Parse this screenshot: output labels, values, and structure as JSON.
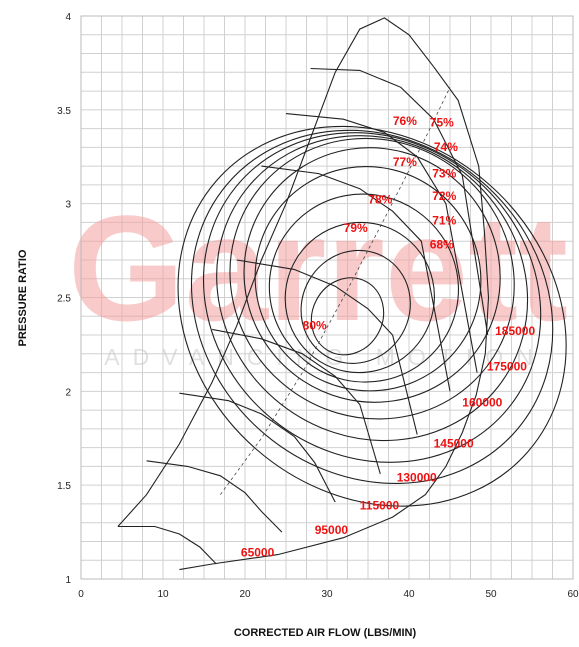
{
  "chart_data": {
    "type": "line",
    "chart_kind": "compressor map",
    "xlabel": "CORRECTED AIR FLOW (LBS/MIN)",
    "ylabel": "PRESSURE RATIO",
    "xlim": [
      0,
      60
    ],
    "ylim": [
      1,
      4
    ],
    "xticks": [
      "0",
      "10",
      "20",
      "30",
      "40",
      "50",
      "60"
    ],
    "yticks": [
      "1",
      "1.5",
      "2",
      "2.5",
      "3",
      "3.5",
      "4"
    ],
    "grid": true,
    "watermark": {
      "main": "Garrett",
      "sub": "ADVANCING MOTION",
      "color": "#f4a0a0"
    },
    "label_color": "#ee1111",
    "line_color": "#222222",
    "surge_line": [
      [
        4.5,
        1.28
      ],
      [
        8,
        1.45
      ],
      [
        12,
        1.72
      ],
      [
        16,
        2.05
      ],
      [
        19,
        2.35
      ],
      [
        22,
        2.7
      ],
      [
        25,
        3.0
      ],
      [
        28,
        3.35
      ],
      [
        31,
        3.7
      ],
      [
        34,
        3.93
      ],
      [
        37,
        3.99
      ],
      [
        40,
        3.9
      ],
      [
        43,
        3.73
      ]
    ],
    "choke_line": [
      [
        43,
        3.73
      ],
      [
        46,
        3.55
      ],
      [
        48.5,
        3.2
      ],
      [
        49.2,
        2.85
      ],
      [
        49.7,
        2.5
      ],
      [
        49.3,
        2.2
      ],
      [
        48.2,
        1.98
      ],
      [
        46.5,
        1.78
      ],
      [
        44.5,
        1.6
      ],
      [
        42,
        1.45
      ],
      [
        38,
        1.33
      ],
      [
        32,
        1.22
      ],
      [
        24,
        1.13
      ],
      [
        16,
        1.08
      ],
      [
        12,
        1.05
      ]
    ],
    "speed_lines": [
      {
        "label": "65000",
        "points": [
          [
            4.5,
            1.28
          ],
          [
            9,
            1.28
          ],
          [
            12,
            1.24
          ],
          [
            14.5,
            1.17
          ],
          [
            16.5,
            1.08
          ]
        ]
      },
      {
        "label": "95000",
        "points": [
          [
            8,
            1.63
          ],
          [
            13,
            1.6
          ],
          [
            17,
            1.55
          ],
          [
            20,
            1.46
          ],
          [
            22,
            1.36
          ],
          [
            24.5,
            1.25
          ]
        ]
      },
      {
        "label": "115000",
        "points": [
          [
            12,
            1.99
          ],
          [
            18,
            1.95
          ],
          [
            22,
            1.88
          ],
          [
            26,
            1.76
          ],
          [
            28.5,
            1.62
          ],
          [
            31,
            1.41
          ]
        ]
      },
      {
        "label": "130000",
        "points": [
          [
            16,
            2.33
          ],
          [
            22,
            2.28
          ],
          [
            27,
            2.2
          ],
          [
            31,
            2.08
          ],
          [
            34,
            1.93
          ],
          [
            36.5,
            1.56
          ]
        ]
      },
      {
        "label": "145000",
        "points": [
          [
            19,
            2.7
          ],
          [
            26,
            2.65
          ],
          [
            31,
            2.56
          ],
          [
            35,
            2.44
          ],
          [
            38,
            2.3
          ],
          [
            41,
            1.77
          ]
        ]
      },
      {
        "label": "160000",
        "points": [
          [
            22,
            3.2
          ],
          [
            29,
            3.16
          ],
          [
            34,
            3.08
          ],
          [
            38,
            2.96
          ],
          [
            41.5,
            2.8
          ],
          [
            45,
            2.0
          ]
        ]
      },
      {
        "label": "175000",
        "points": [
          [
            25,
            3.48
          ],
          [
            32,
            3.45
          ],
          [
            37,
            3.38
          ],
          [
            41,
            3.25
          ],
          [
            44.5,
            3.0
          ],
          [
            48.3,
            2.1
          ]
        ]
      },
      {
        "label": "185000",
        "points": [
          [
            28,
            3.72
          ],
          [
            34,
            3.71
          ],
          [
            39,
            3.62
          ],
          [
            43,
            3.45
          ],
          [
            46.5,
            3.15
          ],
          [
            49.6,
            2.3
          ]
        ]
      }
    ],
    "efficiency_islands": [
      {
        "label": "80%",
        "cx": 32.5,
        "cy": 2.4,
        "rx": 4.8,
        "ry": 0.34,
        "rot": 62
      },
      {
        "label": "79%",
        "cx": 33.5,
        "cy": 2.45,
        "rx": 7.0,
        "ry": 0.52,
        "rot": 60
      },
      {
        "label": "78%",
        "cx": 34.0,
        "cy": 2.5,
        "rx": 9.2,
        "ry": 0.72,
        "rot": 58
      },
      {
        "label": "77%",
        "cx": 34.5,
        "cy": 2.55,
        "rx": 11.4,
        "ry": 0.92,
        "rot": 56
      },
      {
        "label": "76%",
        "cx": 35.0,
        "cy": 2.6,
        "rx": 13.6,
        "ry": 1.1,
        "rot": 55
      },
      {
        "label": "75%",
        "cx": 35.5,
        "cy": 2.62,
        "rx": 15.4,
        "ry": 1.25,
        "rot": 54
      },
      {
        "label": "74%",
        "cx": 35.5,
        "cy": 2.6,
        "rx": 16.8,
        "ry": 1.4,
        "rot": 53
      },
      {
        "label": "73%",
        "cx": 35.5,
        "cy": 2.55,
        "rx": 18.0,
        "ry": 1.55,
        "rot": 52
      },
      {
        "label": "72%",
        "cx": 35.5,
        "cy": 2.5,
        "rx": 19.2,
        "ry": 1.7,
        "rot": 51
      },
      {
        "label": "71%",
        "cx": 35.5,
        "cy": 2.45,
        "rx": 20.3,
        "ry": 1.84,
        "rot": 50
      },
      {
        "label": "68%",
        "cx": 35.5,
        "cy": 2.4,
        "rx": 21.5,
        "ry": 2.0,
        "rot": 49
      }
    ],
    "efficiency_labels": [
      {
        "text": "80%",
        "x": 28.5,
        "y": 2.33
      },
      {
        "text": "79%",
        "x": 33.5,
        "y": 2.85
      },
      {
        "text": "78%",
        "x": 36.5,
        "y": 3.0
      },
      {
        "text": "77%",
        "x": 39.5,
        "y": 3.2
      },
      {
        "text": "76%",
        "x": 39.5,
        "y": 3.42
      },
      {
        "text": "75%",
        "x": 44.0,
        "y": 3.41
      },
      {
        "text": "74%",
        "x": 44.5,
        "y": 3.28
      },
      {
        "text": "73%",
        "x": 44.3,
        "y": 3.14
      },
      {
        "text": "72%",
        "x": 44.3,
        "y": 3.02
      },
      {
        "text": "71%",
        "x": 44.3,
        "y": 2.89
      },
      {
        "text": "68%",
        "x": 44.0,
        "y": 2.76
      }
    ],
    "speed_labels": [
      {
        "text": "65000",
        "x": 19.5,
        "y": 1.12
      },
      {
        "text": "95000",
        "x": 28.5,
        "y": 1.24
      },
      {
        "text": "115000",
        "x": 34.0,
        "y": 1.37
      },
      {
        "text": "130000",
        "x": 38.5,
        "y": 1.52
      },
      {
        "text": "145000",
        "x": 43.0,
        "y": 1.7
      },
      {
        "text": "160000",
        "x": 46.5,
        "y": 1.92
      },
      {
        "text": "175000",
        "x": 49.5,
        "y": 2.11
      },
      {
        "text": "185000",
        "x": 50.5,
        "y": 2.3
      }
    ],
    "efficiency_center_line": [
      [
        17,
        1.45
      ],
      [
        22,
        1.75
      ],
      [
        27,
        2.1
      ],
      [
        32,
        2.5
      ],
      [
        37,
        2.92
      ],
      [
        42,
        3.35
      ],
      [
        45,
        3.62
      ]
    ]
  }
}
